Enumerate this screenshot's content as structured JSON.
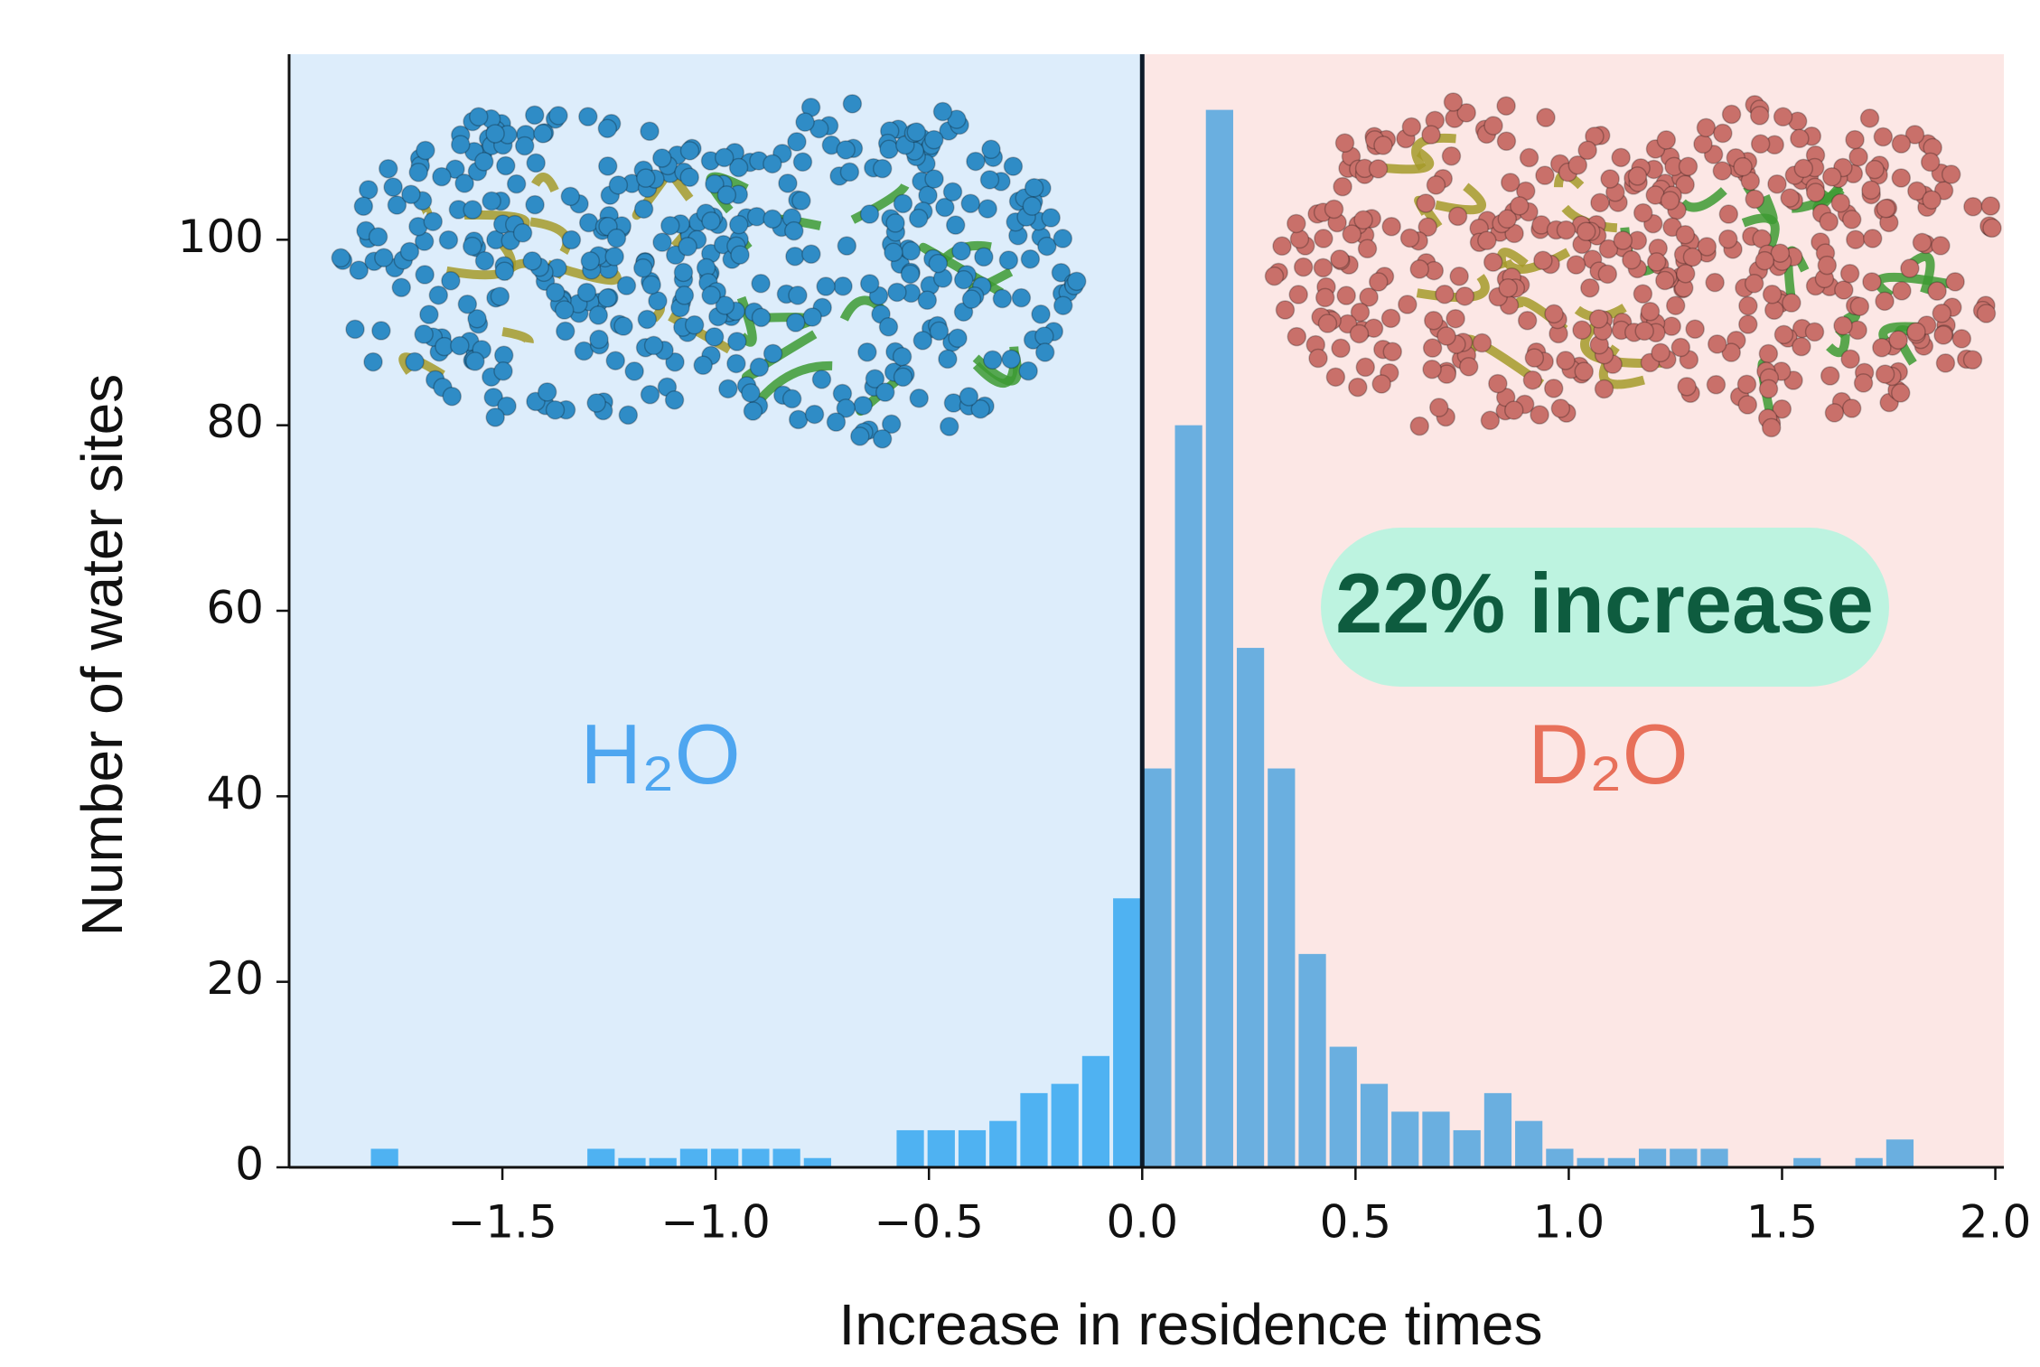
{
  "chart_data": {
    "type": "histogram",
    "xlabel": "Increase in residence times",
    "ylabel": "Number of water sites",
    "annotations": {
      "left": "H₂O",
      "right": "D₂O",
      "badge": "22% increase"
    },
    "bins": [
      -1.8125,
      -1.74,
      -1.6675,
      -1.595,
      -1.5225,
      -1.45,
      -1.3775,
      -1.305,
      -1.2325,
      -1.16,
      -1.0875,
      -1.015,
      -0.9425,
      -0.87,
      -0.7975,
      -0.725,
      -0.6525,
      -0.58,
      -0.5075,
      -0.435,
      -0.3625,
      -0.29,
      -0.2175,
      -0.145,
      -0.0725,
      0,
      0.0725,
      0.145,
      0.2175,
      0.29,
      0.3625,
      0.435,
      0.5075,
      0.58,
      0.6525,
      0.725,
      0.7975,
      0.87,
      0.9425,
      1.015,
      1.0875,
      1.16,
      1.2325,
      1.305,
      1.3775,
      1.45,
      1.5225,
      1.595,
      1.6675,
      1.74,
      1.8125
    ],
    "values": [
      2,
      0,
      0,
      0,
      0,
      0,
      0,
      2,
      1,
      1,
      2,
      2,
      2,
      2,
      1,
      0,
      0,
      4,
      4,
      4,
      5,
      8,
      9,
      12,
      29,
      43,
      80,
      114,
      56,
      43,
      23,
      13,
      9,
      6,
      6,
      4,
      8,
      5,
      2,
      1,
      1,
      2,
      2,
      2,
      0,
      0,
      1,
      0,
      1,
      3
    ],
    "colors": {
      "negative_bars": "#4fb2f2",
      "positive_bars": "#6aafe0",
      "negative_region": "#ddedfb",
      "positive_region": "#fce7e5",
      "left_label": "#4ea6f0",
      "right_label": "#e8705a",
      "badge_fill": "#bdf3e0",
      "badge_text": "#0e5c3f"
    },
    "xlim": [
      -2,
      2.02
    ],
    "xticks": [
      {
        "value": -1.5,
        "label": "−1.5"
      },
      {
        "value": -1,
        "label": "−1.0"
      },
      {
        "value": -0.5,
        "label": "−0.5"
      },
      {
        "value": 0,
        "label": "0.0"
      },
      {
        "value": 0.5,
        "label": "0.5"
      },
      {
        "value": 1,
        "label": "1.0"
      },
      {
        "value": 1.5,
        "label": "1.5"
      },
      {
        "value": 2,
        "label": "2.0"
      }
    ],
    "ylim": [
      0,
      120
    ],
    "yticks": [
      0,
      20,
      40,
      60,
      80,
      100
    ]
  }
}
